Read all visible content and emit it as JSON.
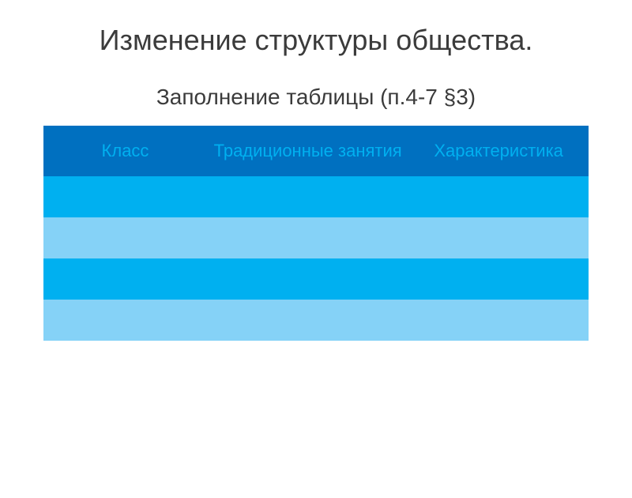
{
  "title": {
    "text": "Изменение структуры общества.",
    "fontsize": 36,
    "color": "#3b3b3b"
  },
  "subtitle": {
    "text": "Заполнение таблицы (п.4-7 §3)",
    "fontsize": 28,
    "color": "#3b3b3b"
  },
  "table": {
    "type": "table",
    "columns": [
      "Класс",
      "Традиционные занятия",
      "Характеристика"
    ],
    "header": {
      "background_color": "#0070c0",
      "text_color": "#00b0f0",
      "fontsize": 22,
      "height": 64
    },
    "rows": [
      [
        "",
        "",
        ""
      ],
      [
        "",
        "",
        ""
      ],
      [
        "",
        "",
        ""
      ],
      [
        "",
        "",
        ""
      ]
    ],
    "row_colors": {
      "odd": "#00b0f0",
      "even": "#85d2f7"
    },
    "column_widths": [
      "30%",
      "37%",
      "33%"
    ]
  },
  "background_color": "#ffffff"
}
